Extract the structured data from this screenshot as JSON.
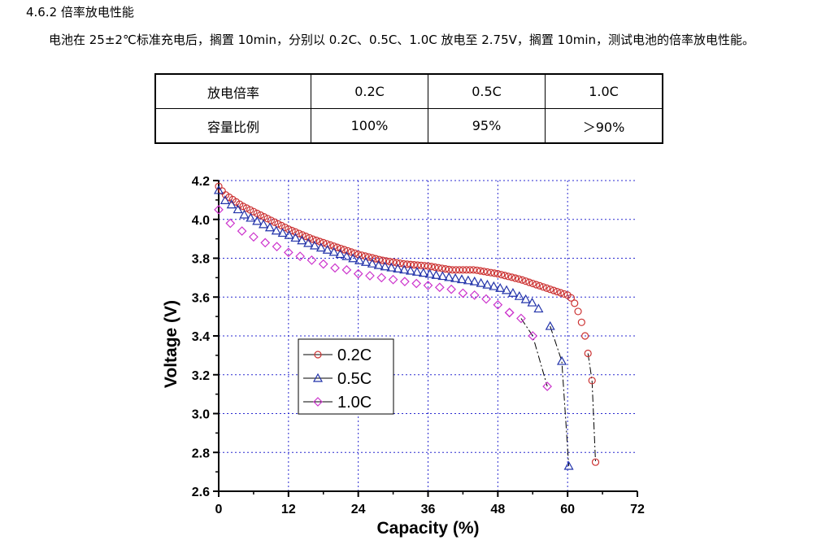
{
  "doc": {
    "heading": "4.6.2 倍率放电性能",
    "paragraph": "电池在 25±2℃标准充电后，搁置 10min，分别以 0.2C、0.5C、1.0C 放电至 2.75V，搁置 10min，测试电池的倍率放电性能。"
  },
  "table": {
    "rows": [
      {
        "label": "放电倍率",
        "cells": [
          "0.2C",
          "0.5C",
          "1.0C"
        ]
      },
      {
        "label": "容量比例",
        "cells": [
          "100%",
          "95%",
          "＞90%"
        ]
      }
    ]
  },
  "chart_data": {
    "type": "scatter",
    "xlabel": "Capacity (%)",
    "ylabel": "Voltage (V)",
    "xlim": [
      0,
      72
    ],
    "ylim": [
      2.6,
      4.2
    ],
    "xticks": [
      0,
      12,
      24,
      36,
      48,
      60,
      72
    ],
    "yticks": [
      2.6,
      2.8,
      3.0,
      3.2,
      3.4,
      3.6,
      3.8,
      4.0,
      4.2
    ],
    "grid": true,
    "legend_position": "center-left",
    "series": [
      {
        "name": "0.2C",
        "marker": "circle",
        "color": "#cc3333",
        "x": [
          0,
          1,
          2,
          3,
          4,
          6,
          8,
          10,
          12,
          16,
          20,
          24,
          28,
          32,
          36,
          40,
          44,
          48,
          52,
          56,
          58,
          59,
          60,
          60.5,
          61,
          61.5,
          62,
          62.5,
          63,
          63.5,
          64.2,
          64.8
        ],
        "y": [
          4.17,
          4.13,
          4.11,
          4.09,
          4.07,
          4.04,
          4.01,
          3.98,
          3.95,
          3.9,
          3.86,
          3.82,
          3.79,
          3.77,
          3.76,
          3.74,
          3.74,
          3.72,
          3.69,
          3.65,
          3.63,
          3.62,
          3.61,
          3.6,
          3.58,
          3.55,
          3.51,
          3.46,
          3.4,
          3.31,
          3.17,
          2.75
        ]
      },
      {
        "name": "0.5C",
        "marker": "triangle",
        "color": "#2233aa",
        "x": [
          0,
          1,
          2,
          3,
          4,
          6,
          8,
          10,
          12,
          16,
          20,
          24,
          28,
          32,
          36,
          40,
          44,
          48,
          50,
          52,
          54,
          55,
          57,
          59,
          60.2
        ],
        "y": [
          4.15,
          4.1,
          4.08,
          4.06,
          4.03,
          4.0,
          3.97,
          3.94,
          3.92,
          3.87,
          3.83,
          3.79,
          3.76,
          3.74,
          3.72,
          3.7,
          3.68,
          3.65,
          3.63,
          3.6,
          3.57,
          3.54,
          3.45,
          3.27,
          2.73
        ]
      },
      {
        "name": "1.0C",
        "marker": "diamond",
        "color": "#cc33cc",
        "x": [
          0,
          2,
          4,
          6,
          8,
          10,
          12,
          14,
          16,
          18,
          20,
          22,
          24,
          26,
          28,
          30,
          32,
          34,
          36,
          38,
          40,
          42,
          44,
          46,
          48,
          50,
          52,
          54,
          56.5
        ],
        "y": [
          4.05,
          3.98,
          3.94,
          3.91,
          3.88,
          3.86,
          3.83,
          3.81,
          3.79,
          3.77,
          3.75,
          3.74,
          3.72,
          3.71,
          3.7,
          3.69,
          3.68,
          3.67,
          3.66,
          3.65,
          3.64,
          3.62,
          3.61,
          3.59,
          3.56,
          3.52,
          3.49,
          3.4,
          3.14
        ]
      }
    ]
  }
}
